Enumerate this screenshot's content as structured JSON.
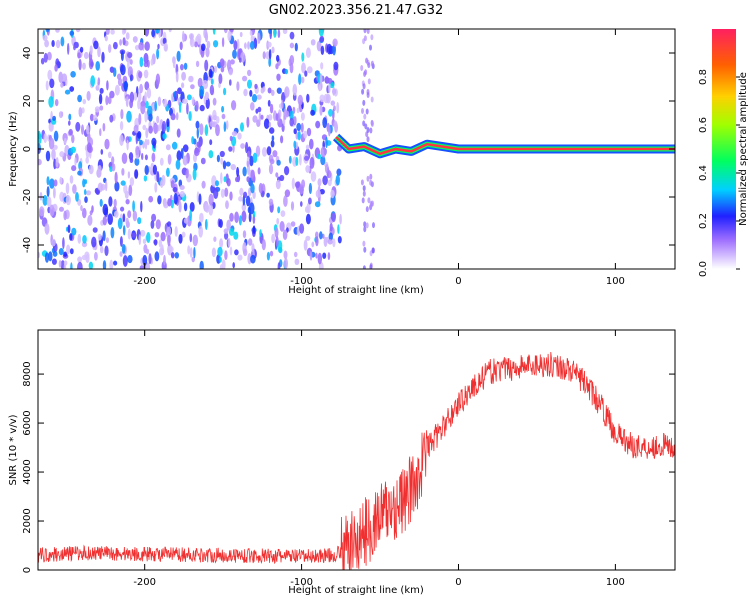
{
  "title": "GN02.2023.356.21.47.G32",
  "chart_data": [
    {
      "type": "heatmap",
      "xlabel": "Height of straight line (km)",
      "ylabel": "Frequency (Hz)",
      "xlim": [
        -268,
        138
      ],
      "ylim": [
        -50,
        50
      ],
      "xticks": [
        -200,
        -100,
        0,
        100
      ],
      "yticks": [
        -40,
        -20,
        0,
        20,
        40
      ],
      "colorbar": {
        "label": "Normalized spectral amplitude",
        "range": [
          0,
          1
        ],
        "ticks": [
          0.0,
          0.2,
          0.4,
          0.6,
          0.8
        ]
      },
      "noise_region": {
        "x": [
          -268,
          -75
        ],
        "frequency": [
          -50,
          50
        ],
        "amplitude": [
          0.05,
          0.35
        ]
      },
      "signal_line": {
        "frequency": 0,
        "x_start": -78,
        "x_end": 138,
        "amplitude": 0.95,
        "x": [
          -78,
          -70,
          -60,
          -50,
          -40,
          -30,
          -20,
          -10,
          0,
          20,
          40,
          60,
          80,
          100,
          138
        ],
        "frequency_offset": [
          5,
          0,
          1,
          -2,
          0,
          -1,
          2,
          1,
          0,
          0,
          0,
          0,
          0,
          0,
          0
        ]
      },
      "grid": false
    },
    {
      "type": "line",
      "xlabel": "Height of straight line (km)",
      "ylabel": "SNR (10 * v/v)",
      "xlim": [
        -268,
        138
      ],
      "ylim": [
        0,
        9800
      ],
      "xticks": [
        -200,
        -100,
        0,
        100
      ],
      "yticks": [
        0,
        2000,
        4000,
        6000,
        8000
      ],
      "color": "#f03030",
      "series": [
        {
          "x": [
            -268,
            -240,
            -200,
            -150,
            -100,
            -80,
            -70,
            -60,
            -50,
            -45,
            -40,
            -35,
            -30,
            -25,
            -20,
            -10,
            0,
            10,
            20,
            30,
            40,
            50,
            60,
            70,
            80,
            90,
            100,
            110,
            120,
            130,
            138
          ],
          "values": [
            600,
            700,
            650,
            600,
            550,
            600,
            900,
            1500,
            2200,
            2400,
            2600,
            2800,
            3300,
            4000,
            5000,
            5800,
            6800,
            7500,
            8100,
            8200,
            8300,
            8400,
            8400,
            8200,
            7700,
            6800,
            5600,
            5100,
            5000,
            5100,
            5000
          ]
        }
      ],
      "grid": false
    }
  ]
}
